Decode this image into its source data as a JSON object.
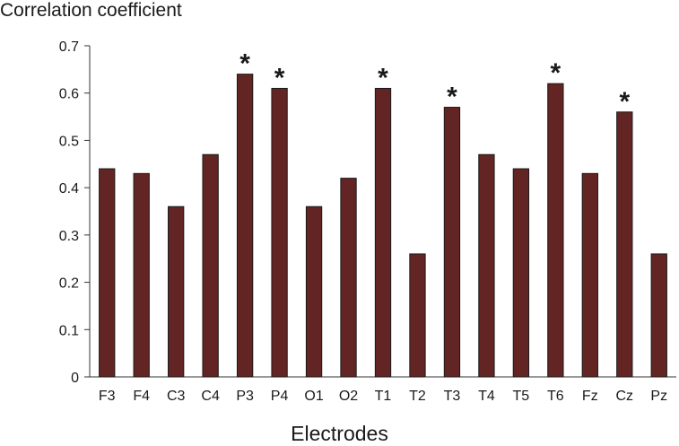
{
  "chart_data": {
    "type": "bar",
    "ylabel": "Correlation coefficient",
    "xlabel": "Electrodes",
    "categories": [
      "F3",
      "F4",
      "C3",
      "C4",
      "P3",
      "P4",
      "O1",
      "O2",
      "T1",
      "T2",
      "T3",
      "T4",
      "T5",
      "T6",
      "Fz",
      "Cz",
      "Pz"
    ],
    "values": [
      0.44,
      0.43,
      0.36,
      0.47,
      0.64,
      0.61,
      0.36,
      0.42,
      0.61,
      0.26,
      0.57,
      0.47,
      0.44,
      0.62,
      0.43,
      0.56,
      0.26
    ],
    "significant": [
      false,
      false,
      false,
      false,
      true,
      true,
      false,
      false,
      true,
      false,
      true,
      false,
      false,
      true,
      false,
      true,
      false
    ],
    "significance_marker": "*",
    "ylim": [
      0,
      0.7
    ],
    "yticks": [
      0,
      0.1,
      0.2,
      0.3,
      0.4,
      0.5,
      0.6,
      0.7
    ],
    "ytick_labels": [
      "0",
      "0.1",
      "0.2",
      "0.3",
      "0.4",
      "0.5",
      "0.6",
      "0.7"
    ],
    "bar_color": "#632523",
    "grid": false,
    "legend": "none"
  }
}
